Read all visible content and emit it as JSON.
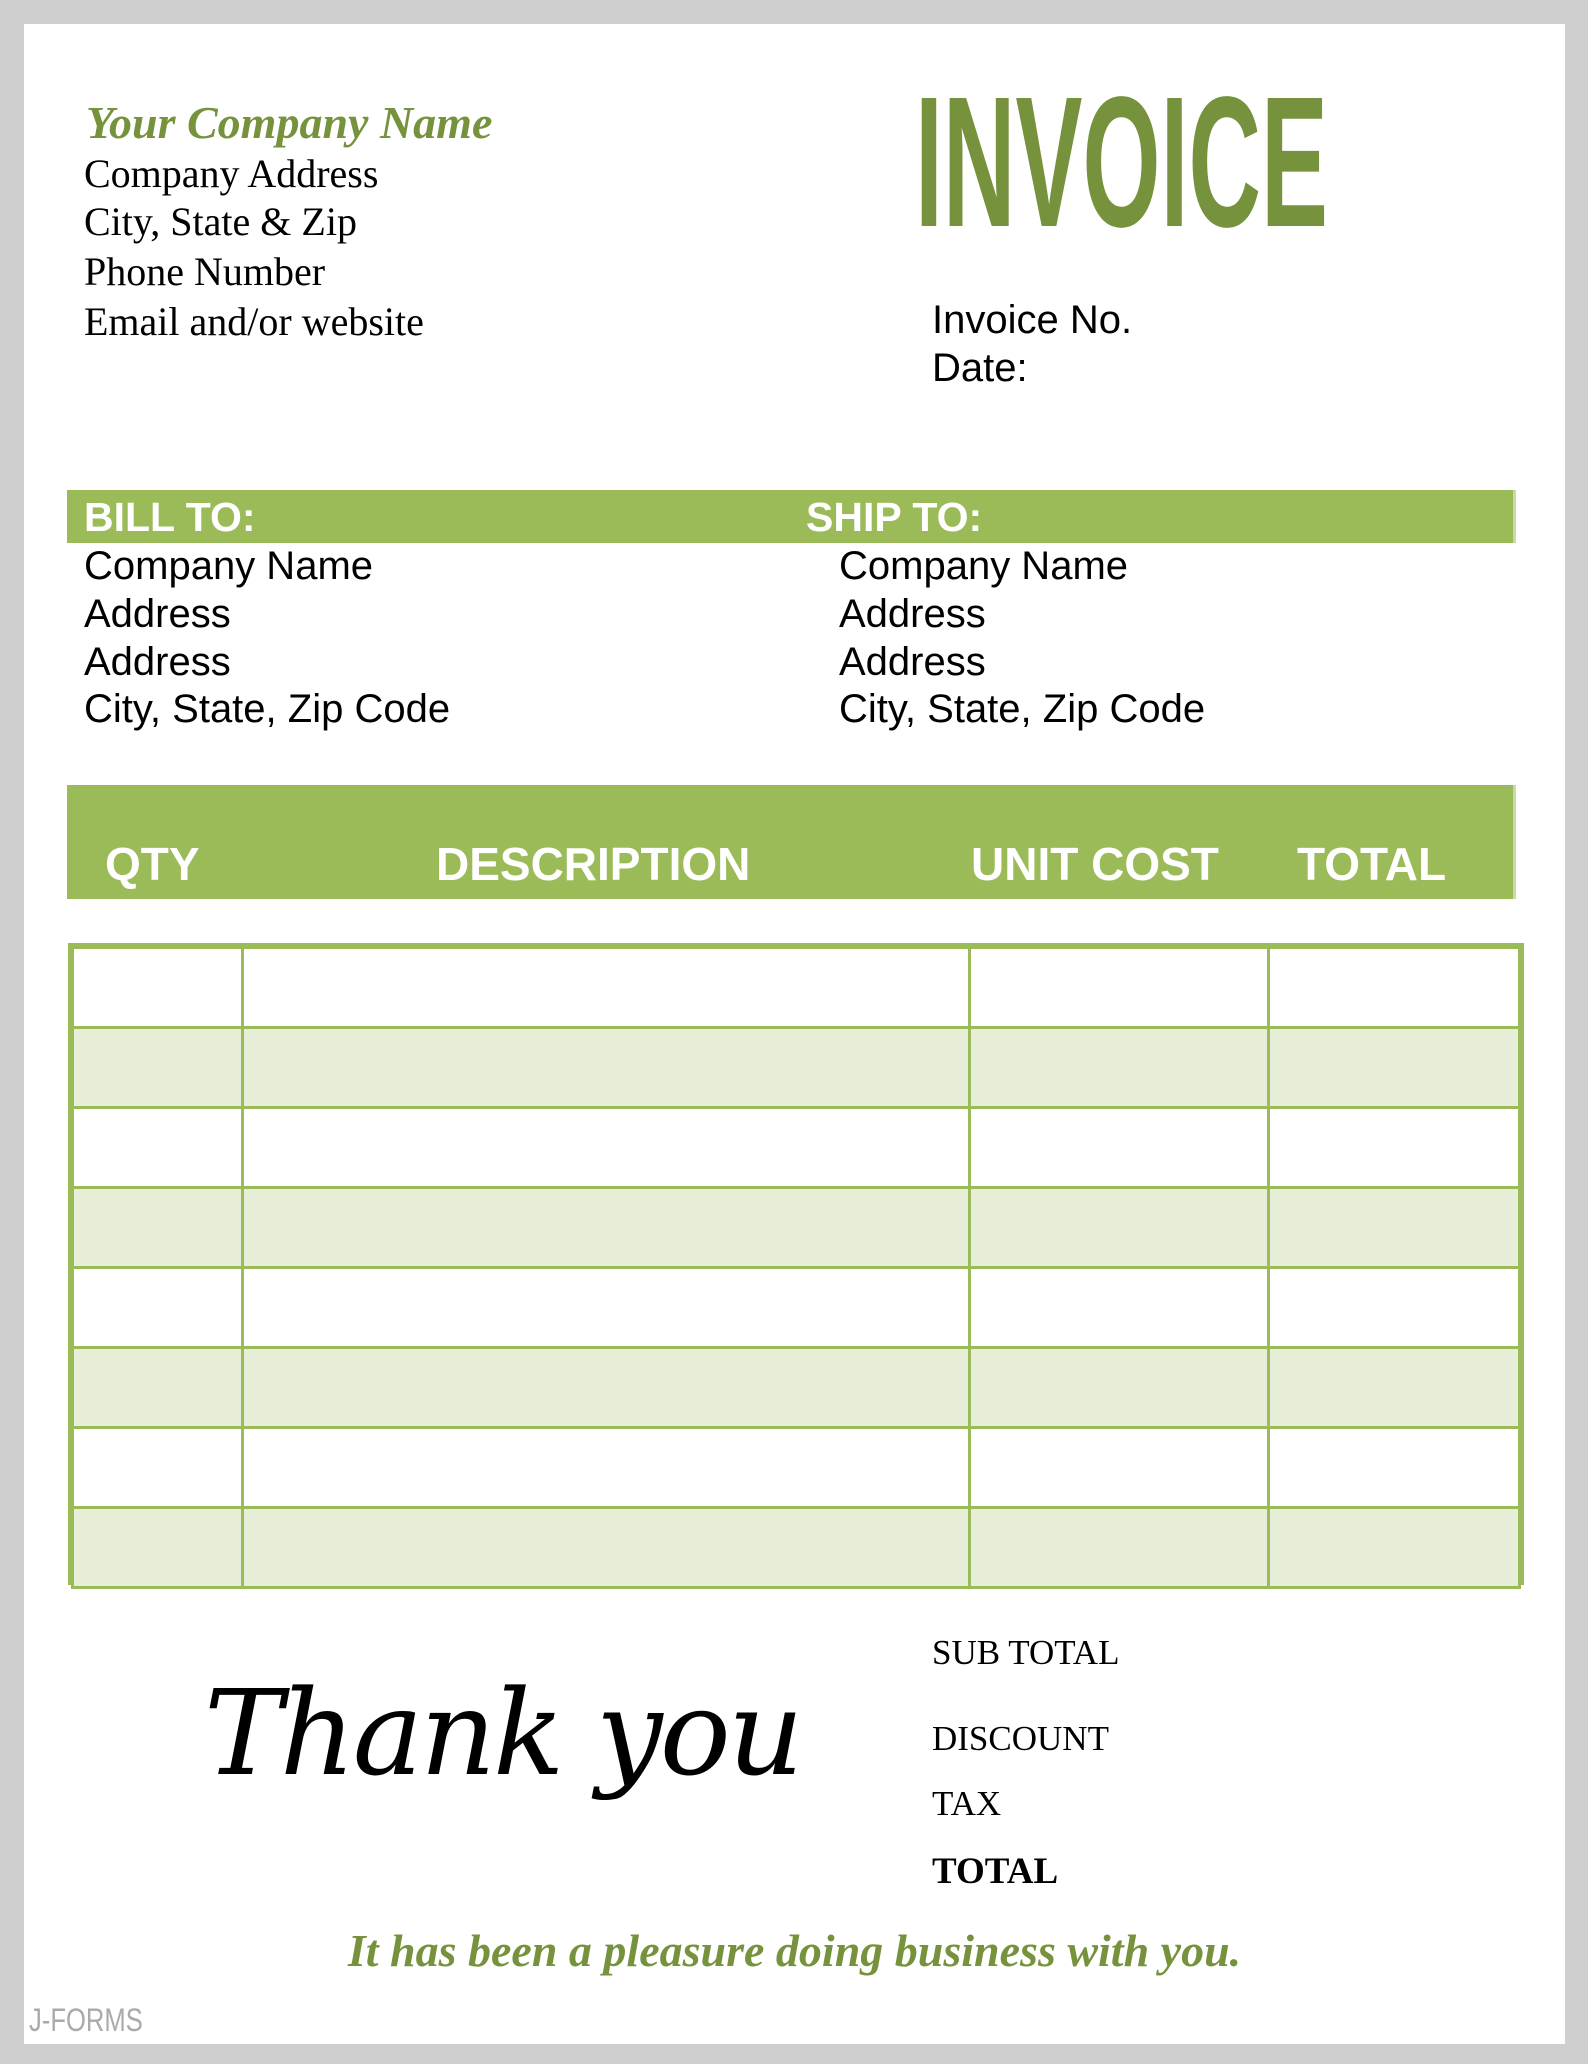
{
  "company": {
    "name": "Your Company Name",
    "lines": [
      "Company Address",
      "City, State & Zip",
      "Phone Number",
      "Email and/or website"
    ]
  },
  "title": "INVOICE",
  "meta": {
    "invoice_no": "Invoice No.",
    "date": "Date:"
  },
  "bill_to": {
    "label": "BILL TO:",
    "lines": [
      "Company Name",
      "Address",
      "Address",
      "City, State, Zip Code"
    ]
  },
  "ship_to": {
    "label": "SHIP TO:",
    "lines": [
      "Company Name",
      "Address",
      "Address",
      "City, State, Zip Code"
    ]
  },
  "table": {
    "columns": [
      "QTY",
      "DESCRIPTION",
      "UNIT COST",
      "TOTAL"
    ],
    "row_count": 8
  },
  "totals": {
    "subtotal": "SUB TOTAL",
    "discount": "DISCOUNT",
    "tax": "TAX",
    "total": "TOTAL"
  },
  "thank_you": "Thank you",
  "footer": "It has been a pleasure doing business with you.",
  "watermark": "J-FORMS",
  "colors": {
    "accent": "#9bbb59",
    "dark_accent": "#76923c",
    "row_alt": "#e6eed7"
  }
}
